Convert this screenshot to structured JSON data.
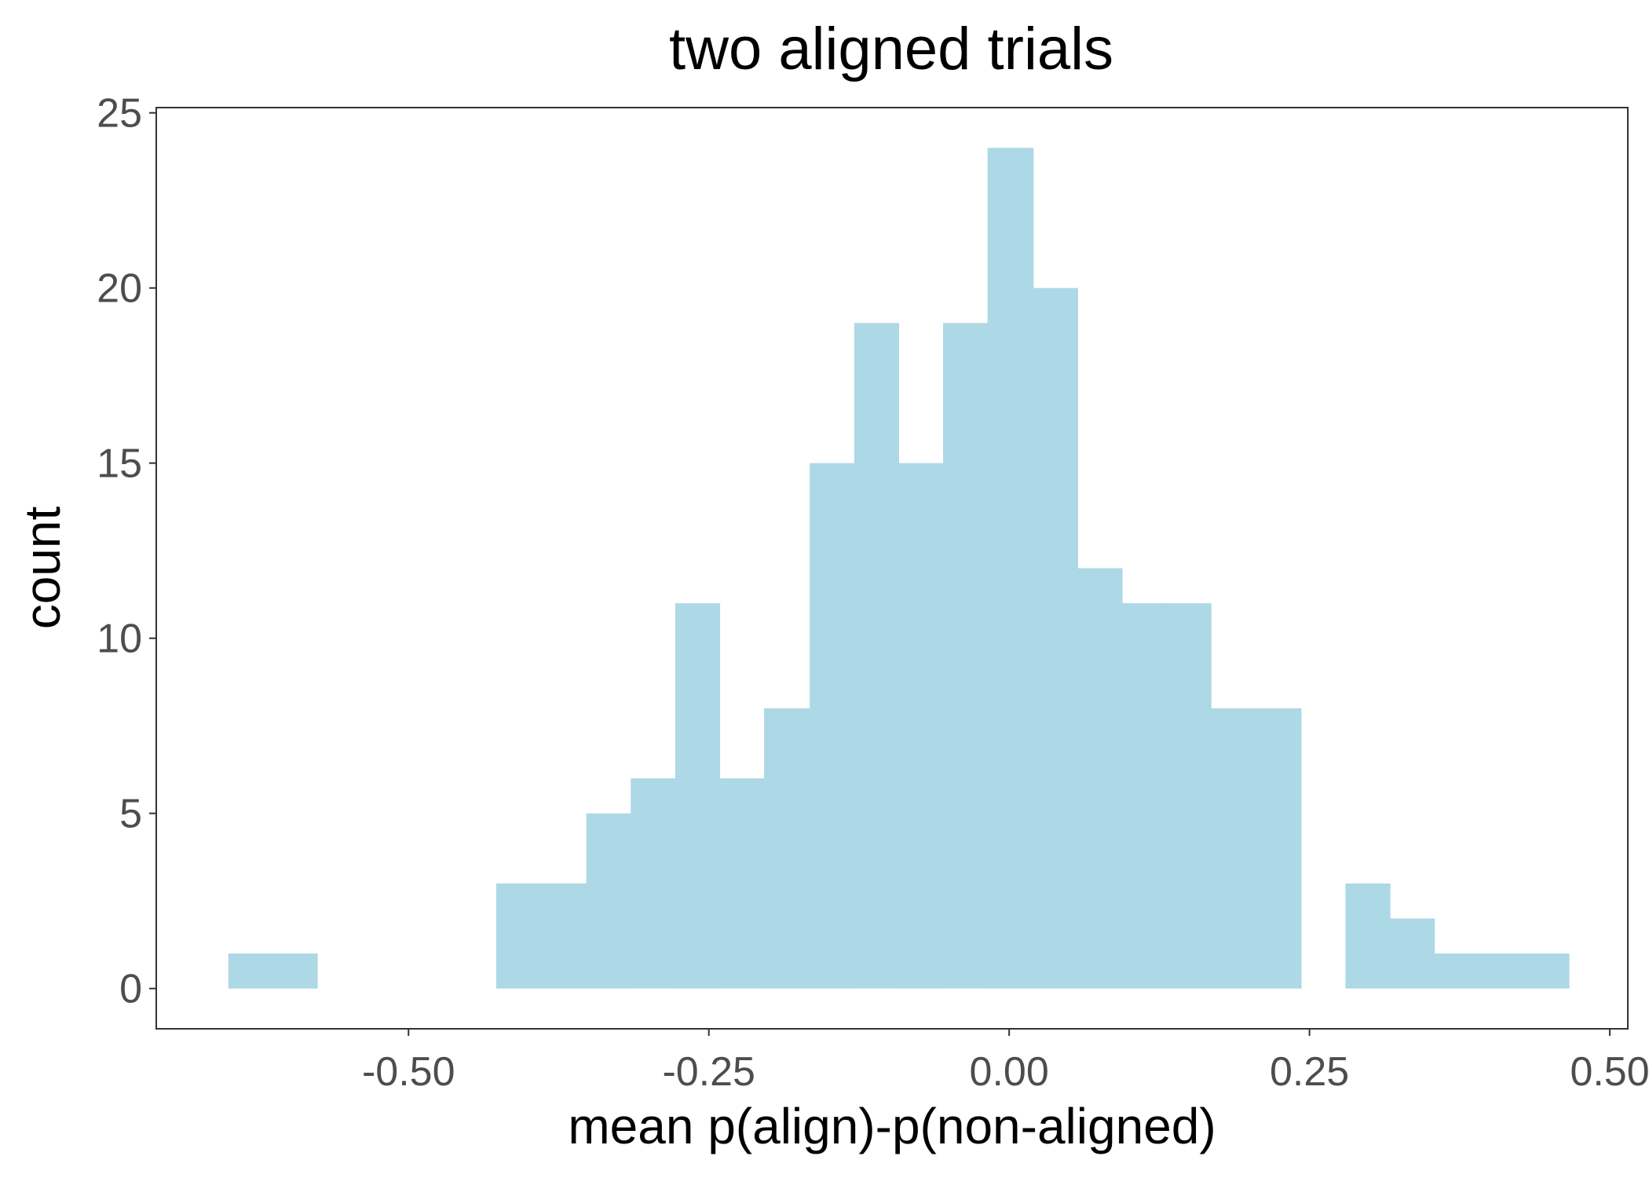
{
  "chart_data": {
    "type": "bar",
    "title": "two aligned trials",
    "xlabel": "mean p(align)-p(non-aligned)",
    "ylabel": "count",
    "xlim": [
      -0.71,
      0.515
    ],
    "ylim": [
      -1.15,
      25.15
    ],
    "x_ticks": [
      -0.5,
      -0.25,
      0.0,
      0.25,
      0.5
    ],
    "x_tick_labels": [
      "-0.50",
      "-0.25",
      "0.00",
      "0.25",
      "0.50"
    ],
    "y_ticks": [
      0,
      5,
      10,
      15,
      20,
      25
    ],
    "y_tick_labels": [
      "0",
      "5",
      "10",
      "15",
      "20",
      "25"
    ],
    "bin_width": 0.0372,
    "bins": [
      {
        "x_start": -0.65,
        "x_end": -0.613,
        "count": 1
      },
      {
        "x_start": -0.613,
        "x_end": -0.576,
        "count": 1
      },
      {
        "x_start": -0.576,
        "x_end": -0.538,
        "count": 0
      },
      {
        "x_start": -0.538,
        "x_end": -0.501,
        "count": 0
      },
      {
        "x_start": -0.501,
        "x_end": -0.464,
        "count": 0
      },
      {
        "x_start": -0.464,
        "x_end": -0.427,
        "count": 0
      },
      {
        "x_start": -0.427,
        "x_end": -0.39,
        "count": 3
      },
      {
        "x_start": -0.39,
        "x_end": -0.352,
        "count": 3
      },
      {
        "x_start": -0.352,
        "x_end": -0.315,
        "count": 5
      },
      {
        "x_start": -0.315,
        "x_end": -0.278,
        "count": 6
      },
      {
        "x_start": -0.278,
        "x_end": -0.241,
        "count": 11
      },
      {
        "x_start": -0.241,
        "x_end": -0.204,
        "count": 6
      },
      {
        "x_start": -0.204,
        "x_end": -0.166,
        "count": 8
      },
      {
        "x_start": -0.166,
        "x_end": -0.129,
        "count": 15
      },
      {
        "x_start": -0.129,
        "x_end": -0.092,
        "count": 19
      },
      {
        "x_start": -0.092,
        "x_end": -0.055,
        "count": 15
      },
      {
        "x_start": -0.055,
        "x_end": -0.018,
        "count": 19
      },
      {
        "x_start": -0.018,
        "x_end": 0.02,
        "count": 24
      },
      {
        "x_start": 0.02,
        "x_end": 0.057,
        "count": 20
      },
      {
        "x_start": 0.057,
        "x_end": 0.094,
        "count": 12
      },
      {
        "x_start": 0.094,
        "x_end": 0.131,
        "count": 11
      },
      {
        "x_start": 0.131,
        "x_end": 0.168,
        "count": 11
      },
      {
        "x_start": 0.168,
        "x_end": 0.206,
        "count": 8
      },
      {
        "x_start": 0.206,
        "x_end": 0.243,
        "count": 8
      },
      {
        "x_start": 0.243,
        "x_end": 0.28,
        "count": 0
      },
      {
        "x_start": 0.28,
        "x_end": 0.317,
        "count": 3
      },
      {
        "x_start": 0.317,
        "x_end": 0.354,
        "count": 2
      },
      {
        "x_start": 0.354,
        "x_end": 0.392,
        "count": 1
      },
      {
        "x_start": 0.392,
        "x_end": 0.429,
        "count": 1
      },
      {
        "x_start": 0.429,
        "x_end": 0.466,
        "count": 1
      }
    ],
    "fill_color": "#add8e6",
    "panel_border_color": "#333333",
    "grid": false,
    "legend": "none"
  }
}
